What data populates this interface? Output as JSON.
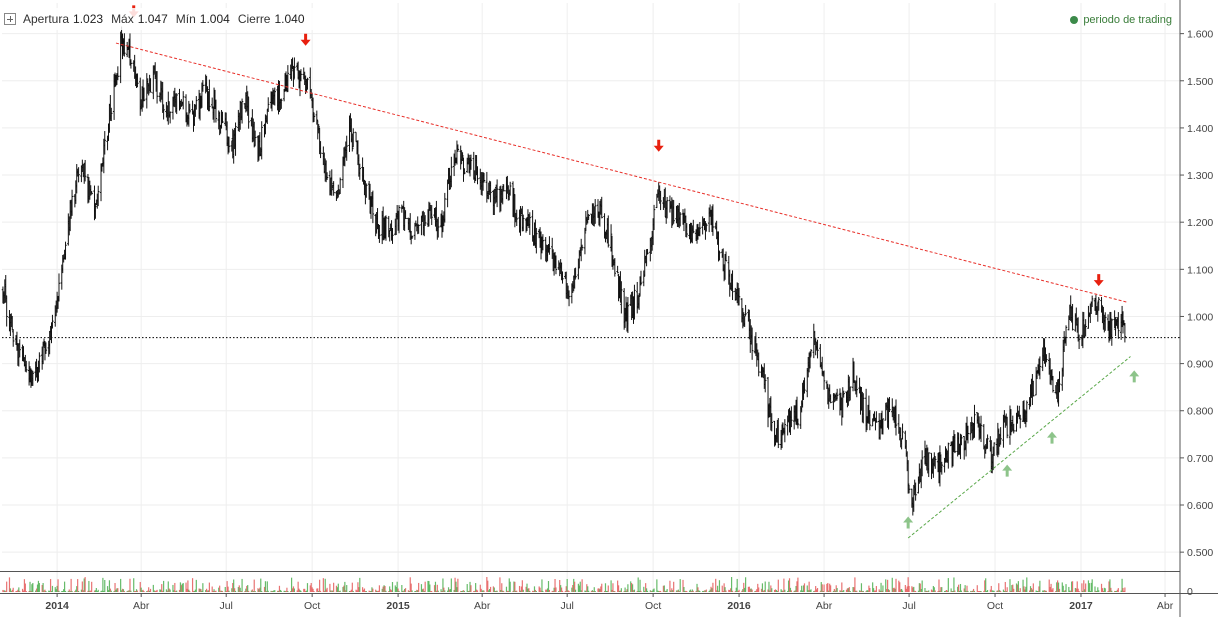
{
  "ohlc_header": {
    "open_label": "Apertura",
    "open_value": "1.023",
    "high_label": "Máx",
    "high_value": "1.047",
    "low_label": "Mín",
    "low_value": "1.004",
    "close_label": "Cierre",
    "close_value": "1.040"
  },
  "legend": {
    "label": "periodo de trading",
    "color": "#3c8a4a"
  },
  "colors": {
    "resistance": "#e8302a",
    "support": "#5aa84a",
    "arrow_down": "#e8200f",
    "arrow_up": "#8dc48a",
    "price": "#111111",
    "volume_up": "#4caf50",
    "volume_down": "#e45a5a"
  },
  "chart_data": {
    "type": "line",
    "title": "",
    "xlabel": "",
    "ylabel": "",
    "ylim": [
      0.46,
      1.665
    ],
    "xlim": [
      "2013-11-03",
      "2017-04-17"
    ],
    "grid": true,
    "legend_position": "top-right",
    "y_ticks": [
      "1.600",
      "1.500",
      "1.400",
      "1.300",
      "1.200",
      "1.100",
      "1.000",
      "0.900",
      "0.800",
      "0.700",
      "0.600",
      "0.500"
    ],
    "y_tick_values": [
      1.6,
      1.5,
      1.4,
      1.3,
      1.2,
      1.1,
      1.0,
      0.9,
      0.8,
      0.7,
      0.6,
      0.5
    ],
    "x_ticks": [
      {
        "label": "2014",
        "date": "2014-01-01",
        "bold": true
      },
      {
        "label": "Abr",
        "date": "2014-04-01"
      },
      {
        "label": "Jul",
        "date": "2014-07-01"
      },
      {
        "label": "Oct",
        "date": "2014-10-01"
      },
      {
        "label": "2015",
        "date": "2015-01-01",
        "bold": true
      },
      {
        "label": "Abr",
        "date": "2015-04-01"
      },
      {
        "label": "Jul",
        "date": "2015-07-01"
      },
      {
        "label": "Oct",
        "date": "2015-10-01"
      },
      {
        "label": "2016",
        "date": "2016-01-01",
        "bold": true
      },
      {
        "label": "Abr",
        "date": "2016-04-01"
      },
      {
        "label": "Jul",
        "date": "2016-07-01"
      },
      {
        "label": "Oct",
        "date": "2016-10-01"
      },
      {
        "label": "2017",
        "date": "2017-01-01",
        "bold": true
      },
      {
        "label": "Abr",
        "date": "2017-04-01"
      }
    ],
    "volume_axis_label": "0",
    "series": [
      {
        "values": [
          [
            "2013-11-04",
            1.06
          ],
          [
            "2013-11-18",
            0.93
          ],
          [
            "2013-12-02",
            0.87
          ],
          [
            "2013-12-16",
            0.91
          ],
          [
            "2013-12-30",
            1.0
          ],
          [
            "2014-01-13",
            1.2
          ],
          [
            "2014-01-27",
            1.33
          ],
          [
            "2014-02-10",
            1.22
          ],
          [
            "2014-02-24",
            1.4
          ],
          [
            "2014-03-10",
            1.57
          ],
          [
            "2014-03-17",
            1.59
          ],
          [
            "2014-03-31",
            1.46
          ],
          [
            "2014-04-14",
            1.51
          ],
          [
            "2014-04-28",
            1.43
          ],
          [
            "2014-05-12",
            1.45
          ],
          [
            "2014-05-26",
            1.42
          ],
          [
            "2014-06-09",
            1.48
          ],
          [
            "2014-06-23",
            1.43
          ],
          [
            "2014-07-07",
            1.36
          ],
          [
            "2014-07-21",
            1.47
          ],
          [
            "2014-08-04",
            1.35
          ],
          [
            "2014-08-18",
            1.45
          ],
          [
            "2014-09-01",
            1.48
          ],
          [
            "2014-09-15",
            1.52
          ],
          [
            "2014-09-29",
            1.47
          ],
          [
            "2014-10-13",
            1.33
          ],
          [
            "2014-10-27",
            1.23
          ],
          [
            "2014-11-10",
            1.4
          ],
          [
            "2014-11-24",
            1.3
          ],
          [
            "2014-12-08",
            1.2
          ],
          [
            "2014-12-22",
            1.18
          ],
          [
            "2015-01-05",
            1.22
          ],
          [
            "2015-01-19",
            1.17
          ],
          [
            "2015-02-02",
            1.22
          ],
          [
            "2015-02-16",
            1.2
          ],
          [
            "2015-03-02",
            1.34
          ],
          [
            "2015-03-16",
            1.32
          ],
          [
            "2015-03-30",
            1.3
          ],
          [
            "2015-04-13",
            1.24
          ],
          [
            "2015-04-27",
            1.28
          ],
          [
            "2015-05-11",
            1.2
          ],
          [
            "2015-05-25",
            1.19
          ],
          [
            "2015-06-08",
            1.14
          ],
          [
            "2015-06-22",
            1.1
          ],
          [
            "2015-07-06",
            1.05
          ],
          [
            "2015-07-20",
            1.2
          ],
          [
            "2015-08-03",
            1.24
          ],
          [
            "2015-08-17",
            1.15
          ],
          [
            "2015-08-31",
            1.0
          ],
          [
            "2015-09-14",
            1.04
          ],
          [
            "2015-09-28",
            1.15
          ],
          [
            "2015-10-05",
            1.25
          ],
          [
            "2015-10-19",
            1.22
          ],
          [
            "2015-11-02",
            1.2
          ],
          [
            "2015-11-16",
            1.16
          ],
          [
            "2015-11-30",
            1.21
          ],
          [
            "2015-12-14",
            1.12
          ],
          [
            "2015-12-28",
            1.05
          ],
          [
            "2016-01-11",
            0.98
          ],
          [
            "2016-01-25",
            0.88
          ],
          [
            "2016-02-08",
            0.74
          ],
          [
            "2016-02-22",
            0.78
          ],
          [
            "2016-03-07",
            0.8
          ],
          [
            "2016-03-21",
            0.95
          ],
          [
            "2016-04-04",
            0.85
          ],
          [
            "2016-04-18",
            0.8
          ],
          [
            "2016-05-02",
            0.88
          ],
          [
            "2016-05-16",
            0.79
          ],
          [
            "2016-05-30",
            0.76
          ],
          [
            "2016-06-13",
            0.82
          ],
          [
            "2016-06-27",
            0.72
          ],
          [
            "2016-07-04",
            0.6
          ],
          [
            "2016-07-18",
            0.7
          ],
          [
            "2016-08-01",
            0.68
          ],
          [
            "2016-08-15",
            0.72
          ],
          [
            "2016-08-29",
            0.74
          ],
          [
            "2016-09-12",
            0.79
          ],
          [
            "2016-09-26",
            0.7
          ],
          [
            "2016-10-10",
            0.77
          ],
          [
            "2016-10-24",
            0.78
          ],
          [
            "2016-11-07",
            0.82
          ],
          [
            "2016-11-21",
            0.92
          ],
          [
            "2016-12-05",
            0.82
          ],
          [
            "2016-12-19",
            1.0
          ],
          [
            "2017-01-02",
            0.97
          ],
          [
            "2017-01-16",
            1.04
          ],
          [
            "2017-01-30",
            0.97
          ],
          [
            "2017-02-13",
            1.0
          ],
          [
            "2017-02-20",
            0.95
          ]
        ]
      }
    ],
    "reference_line": {
      "value": 0.955,
      "style": "dotted"
    },
    "annotations": {
      "resistance_line": {
        "from": [
          "2014-03-05",
          1.58
        ],
        "to": [
          "2017-02-20",
          1.03
        ]
      },
      "support_line": {
        "from": [
          "2016-06-30",
          0.53
        ],
        "to": [
          "2017-02-23",
          0.915
        ]
      },
      "down_arrows": [
        [
          "2014-03-24",
          1.645
        ],
        [
          "2014-09-24",
          1.585
        ],
        [
          "2015-10-07",
          1.36
        ],
        [
          "2017-01-20",
          1.075
        ]
      ],
      "up_arrows": [
        [
          "2016-06-30",
          0.565
        ],
        [
          "2016-10-14",
          0.675
        ],
        [
          "2016-12-01",
          0.745
        ],
        [
          "2017-02-27",
          0.875
        ]
      ]
    }
  }
}
